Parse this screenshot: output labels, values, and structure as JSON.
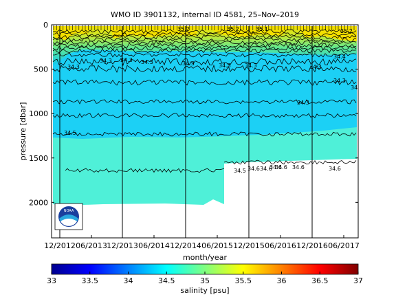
{
  "chart_data": {
    "type": "heatmap",
    "title": "WMO ID 3901132, internal ID 4581, 25–Nov–2019",
    "xlabel": "month/year",
    "ylabel": "pressure [dbar]",
    "colorbar_label": "salinity [psu]",
    "x_ticks": [
      "12/2012",
      "06/2013",
      "12/2013",
      "06/2014",
      "12/2014",
      "06/2015",
      "12/2015",
      "06/2016",
      "12/2016",
      "06/2017"
    ],
    "y_ticks": [
      0,
      500,
      1000,
      1500,
      2000
    ],
    "ylim": [
      0,
      2400
    ],
    "y_reversed": true,
    "clim": [
      33,
      37
    ],
    "colorbar_ticks": [
      33,
      33.5,
      34,
      34.5,
      35,
      35.5,
      36,
      36.5,
      37
    ],
    "colormap": [
      "#00008f",
      "#0000ff",
      "#0080ff",
      "#00ffff",
      "#80ff80",
      "#ffff00",
      "#ff8000",
      "#ff0000",
      "#800000"
    ],
    "surface_salinity_range": [
      34.0,
      35.6
    ],
    "deep_salinity": 34.6,
    "contour_labels": [
      "34.5",
      "34.3",
      "34.3",
      "34.3",
      "34.3",
      "34.3",
      "34.3",
      "34.3",
      "34.4",
      "34.3",
      "34.3",
      "34.5",
      "34.6",
      "34.6",
      "34.6",
      "34.6",
      "34.6",
      "34.6",
      "35.2",
      "35.1",
      "35.2",
      "34.3",
      "34.3",
      "35.2"
    ],
    "max_depth_profile": [
      {
        "date": "12/2012",
        "depth": 2000
      },
      {
        "date": "06/2015",
        "depth": 2000
      },
      {
        "date": "07/2015",
        "depth": 1960
      },
      {
        "date": "09/2015",
        "depth": 1600
      },
      {
        "date": "06/2017",
        "depth": 1550
      }
    ],
    "logo_text": "NOAA"
  }
}
